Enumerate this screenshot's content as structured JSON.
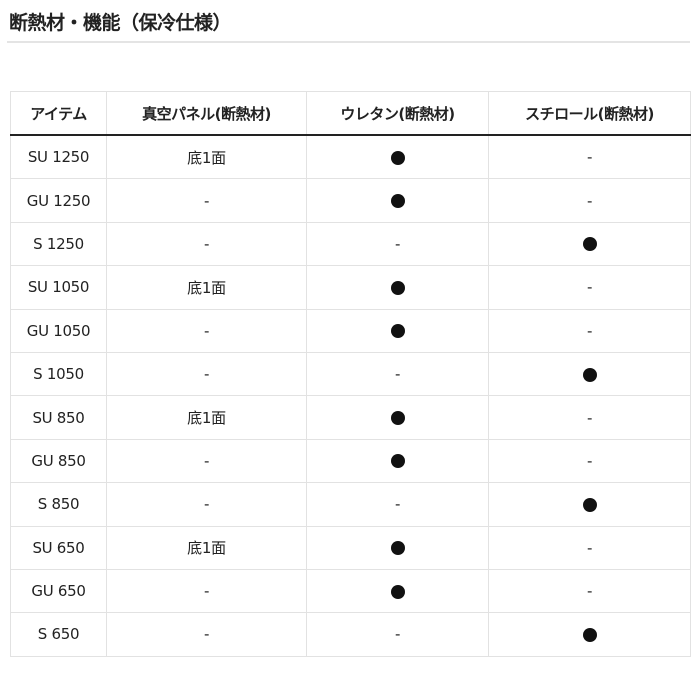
{
  "title": "断熱材・機能（保冷仕様）",
  "table": {
    "headers": [
      "アイテム",
      "真空パネル(断熱材)",
      "ウレタン(断熱材)",
      "スチロール(断熱材)"
    ],
    "rows": [
      [
        "SU 1250",
        "底1面",
        "●",
        "-"
      ],
      [
        "GU 1250",
        "-",
        "●",
        "-"
      ],
      [
        "S 1250",
        "-",
        "-",
        "●"
      ],
      [
        "SU 1050",
        "底1面",
        "●",
        "-"
      ],
      [
        "GU 1050",
        "-",
        "●",
        "-"
      ],
      [
        "S 1050",
        "-",
        "-",
        "●"
      ],
      [
        "SU 850",
        "底1面",
        "●",
        "-"
      ],
      [
        "GU 850",
        "-",
        "●",
        "-"
      ],
      [
        "S 850",
        "-",
        "-",
        "●"
      ],
      [
        "SU 650",
        "底1面",
        "●",
        "-"
      ],
      [
        "GU 650",
        "-",
        "●",
        "-"
      ],
      [
        "S 650",
        "-",
        "-",
        "●"
      ]
    ]
  }
}
